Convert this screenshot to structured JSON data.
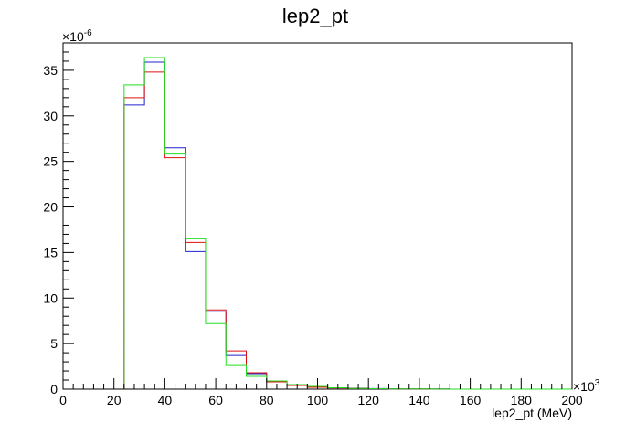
{
  "chart_data": {
    "type": "histogram",
    "title": "lep2_pt",
    "xlabel": "lep2_pt (MeV)",
    "ylabel": "",
    "x_multiplier": {
      "base": "×10",
      "exp": "3"
    },
    "y_multiplier": {
      "base": "×10",
      "exp": "-6"
    },
    "xlim": [
      0,
      200
    ],
    "ylim": [
      0,
      38
    ],
    "x_ticks": [
      "0",
      "20",
      "40",
      "60",
      "80",
      "100",
      "120",
      "140",
      "160",
      "180",
      "200"
    ],
    "y_ticks": [
      "0",
      "5",
      "10",
      "15",
      "20",
      "25",
      "30",
      "35"
    ],
    "bin_edges": [
      0,
      8,
      16,
      24,
      32,
      40,
      48,
      56,
      64,
      72,
      80,
      88,
      96,
      104,
      112,
      120,
      128,
      136,
      144,
      152,
      160,
      168,
      176,
      184,
      192,
      200
    ],
    "grid": false,
    "series": [
      {
        "color": "#2020d0",
        "values": [
          0,
          0,
          0,
          31.2,
          35.9,
          26.5,
          15.1,
          8.5,
          3.7,
          1.7,
          0.8,
          0.45,
          0.25,
          0.15,
          0.1,
          0.06,
          0.04,
          0.02,
          0.02,
          0,
          0,
          0,
          0,
          0,
          0
        ]
      },
      {
        "color": "#e01010",
        "values": [
          0,
          0,
          0,
          32.0,
          34.8,
          25.4,
          16.1,
          8.7,
          4.2,
          1.8,
          0.8,
          0.4,
          0.2,
          0.12,
          0.08,
          0.05,
          0.03,
          0.02,
          0.01,
          0,
          0,
          0,
          0,
          0,
          0
        ]
      },
      {
        "color": "#20e020",
        "values": [
          0,
          0,
          0,
          33.4,
          36.4,
          25.8,
          16.5,
          7.2,
          2.6,
          1.4,
          0.9,
          0.5,
          0.3,
          0.15,
          0.08,
          0.05,
          0.03,
          0.02,
          0.01,
          0,
          0,
          0,
          0,
          0,
          0
        ]
      }
    ]
  }
}
